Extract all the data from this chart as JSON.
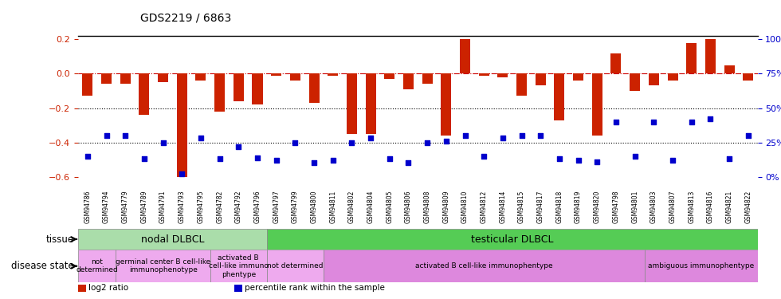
{
  "title": "GDS2219 / 6863",
  "samples": [
    "GSM94786",
    "GSM94794",
    "GSM94779",
    "GSM94789",
    "GSM94791",
    "GSM94793",
    "GSM94795",
    "GSM94782",
    "GSM94792",
    "GSM94796",
    "GSM94797",
    "GSM94799",
    "GSM94800",
    "GSM94811",
    "GSM94802",
    "GSM94804",
    "GSM94805",
    "GSM94806",
    "GSM94808",
    "GSM94809",
    "GSM94810",
    "GSM94812",
    "GSM94814",
    "GSM94815",
    "GSM94817",
    "GSM94818",
    "GSM94819",
    "GSM94820",
    "GSM94798",
    "GSM94801",
    "GSM94803",
    "GSM94807",
    "GSM94813",
    "GSM94816",
    "GSM94821",
    "GSM94822"
  ],
  "log2_ratio": [
    -0.13,
    -0.06,
    -0.06,
    -0.24,
    -0.05,
    -0.6,
    -0.04,
    -0.22,
    -0.16,
    -0.18,
    -0.01,
    -0.04,
    -0.17,
    -0.01,
    -0.35,
    -0.35,
    -0.03,
    -0.09,
    -0.06,
    -0.36,
    0.2,
    -0.01,
    -0.02,
    -0.13,
    -0.07,
    -0.27,
    -0.04,
    -0.36,
    0.12,
    -0.1,
    -0.07,
    -0.04,
    0.18,
    0.2,
    0.05,
    -0.04
  ],
  "percentile_rank_pct": [
    15,
    30,
    30,
    13,
    25,
    2,
    28,
    13,
    22,
    14,
    12,
    25,
    10,
    12,
    25,
    28,
    13,
    10,
    25,
    26,
    30,
    15,
    28,
    30,
    30,
    13,
    12,
    11,
    40,
    15,
    40,
    12,
    40,
    42,
    13,
    30
  ],
  "bar_color": "#cc2200",
  "dot_color": "#0000cc",
  "ylim_left": [
    -0.65,
    0.22
  ],
  "yticks_left": [
    -0.6,
    -0.4,
    -0.2,
    0.0,
    0.2
  ],
  "yticks_right_labels": [
    "0%",
    "25%",
    "50%",
    "75%",
    "100%"
  ],
  "hline_y": [
    0.0,
    -0.2,
    -0.4
  ],
  "hline_styles": [
    "dashdot",
    "dotted",
    "dotted"
  ],
  "hline_colors": [
    "#cc0000",
    "black",
    "black"
  ],
  "tissue_row": [
    {
      "label": "nodal DLBCL",
      "start": 0,
      "end": 10,
      "color": "#aaddaa"
    },
    {
      "label": "testicular DLBCL",
      "start": 10,
      "end": 36,
      "color": "#55cc55"
    }
  ],
  "disease_row": [
    {
      "label": "not\ndetermined",
      "start": 0,
      "end": 2,
      "color": "#eeaaee"
    },
    {
      "label": "germinal center B cell-like\nimmunophenotype",
      "start": 2,
      "end": 7,
      "color": "#eeaaee"
    },
    {
      "label": "activated B\ncell-like immuno\nphentype",
      "start": 7,
      "end": 10,
      "color": "#eeaaee"
    },
    {
      "label": "not determined",
      "start": 10,
      "end": 13,
      "color": "#eeaaee"
    },
    {
      "label": "activated B cell-like immunophentype",
      "start": 13,
      "end": 30,
      "color": "#dd88dd"
    },
    {
      "label": "ambiguous immunophentype",
      "start": 30,
      "end": 36,
      "color": "#dd88dd"
    }
  ],
  "legend_items": [
    {
      "label": "log2 ratio",
      "color": "#cc2200"
    },
    {
      "label": "percentile rank within the sample",
      "color": "#0000cc"
    }
  ],
  "tissue_label": "tissue",
  "disease_label": "disease state",
  "bar_width": 0.55
}
